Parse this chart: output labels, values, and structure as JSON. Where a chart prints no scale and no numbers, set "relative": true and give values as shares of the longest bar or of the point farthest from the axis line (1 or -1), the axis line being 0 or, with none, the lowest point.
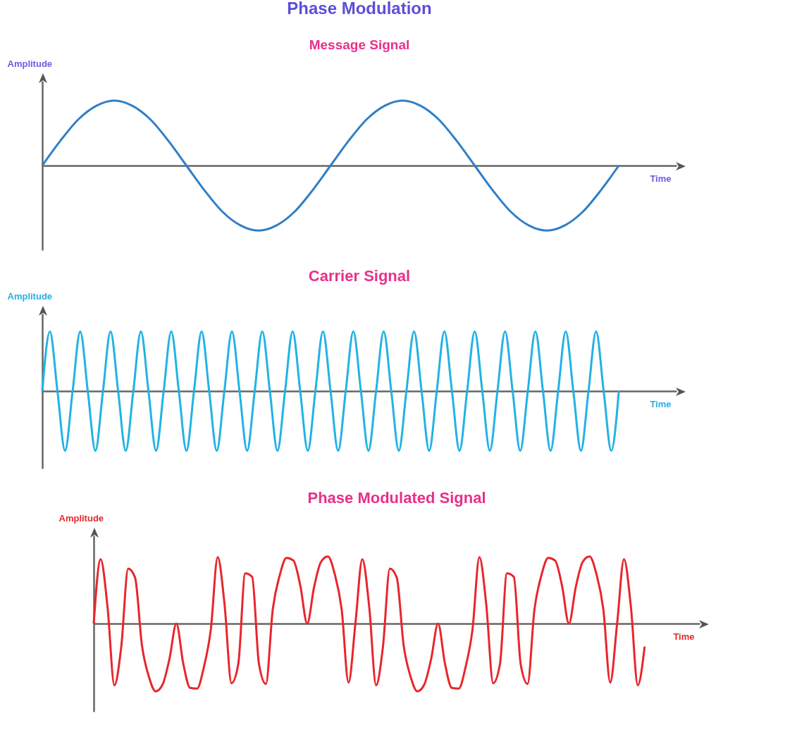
{
  "chart_data": [
    {
      "type": "line",
      "title": "Phase Modulation",
      "subtitle": "Message Signal",
      "xlabel": "Time",
      "ylabel": "Amplitude",
      "relative": true,
      "tick_labels": false,
      "categories": [
        null,
        null,
        null,
        null,
        null,
        null,
        null,
        null,
        null,
        null,
        null,
        null,
        null,
        null,
        null,
        null,
        null,
        null,
        null,
        null,
        null,
        null,
        null,
        null,
        null,
        null,
        null,
        null,
        null,
        null,
        null,
        null,
        null
      ],
      "series": [
        {
          "color": "#2f7fc6",
          "values": [
            0,
            0.38,
            0.71,
            0.92,
            1,
            0.92,
            0.71,
            0.38,
            0,
            -0.38,
            -0.71,
            -0.92,
            -1,
            -0.92,
            -0.71,
            -0.38,
            0,
            0.38,
            0.71,
            0.92,
            1,
            0.92,
            0.71,
            0.38,
            0,
            -0.38,
            -0.71,
            -0.92,
            -1,
            -0.92,
            -0.71,
            -0.38,
            0
          ]
        }
      ]
    },
    {
      "type": "line",
      "title": "Carrier Signal",
      "xlabel": "Time",
      "ylabel": "Amplitude",
      "relative": true,
      "tick_labels": false,
      "categories": [
        null,
        null,
        null,
        null,
        null,
        null,
        null,
        null,
        null,
        null,
        null,
        null,
        null,
        null,
        null,
        null,
        null,
        null,
        null,
        null,
        null,
        null,
        null,
        null,
        null,
        null,
        null,
        null,
        null,
        null,
        null,
        null,
        null,
        null,
        null,
        null,
        null,
        null,
        null,
        null,
        null,
        null,
        null,
        null,
        null,
        null,
        null,
        null,
        null,
        null,
        null,
        null,
        null,
        null,
        null,
        null,
        null,
        null,
        null,
        null,
        null,
        null,
        null,
        null,
        null,
        null,
        null,
        null,
        null,
        null,
        null,
        null,
        null,
        null,
        null,
        null,
        null
      ],
      "series": [
        {
          "color": "#22b2e4",
          "values": [
            0,
            1,
            0,
            -1,
            0,
            1,
            0,
            -1,
            0,
            1,
            0,
            -1,
            0,
            1,
            0,
            -1,
            0,
            1,
            0,
            -1,
            0,
            1,
            0,
            -1,
            0,
            1,
            0,
            -1,
            0,
            1,
            0,
            -1,
            0,
            1,
            0,
            -1,
            0,
            1,
            0,
            -1,
            0,
            1,
            0,
            -1,
            0,
            1,
            0,
            -1,
            0,
            1,
            0,
            -1,
            0,
            1,
            0,
            -1,
            0,
            1,
            0,
            -1,
            0,
            1,
            0,
            -1,
            0,
            1,
            0,
            -1,
            0,
            1,
            0,
            -1,
            0,
            1,
            0,
            -1,
            0
          ]
        }
      ]
    },
    {
      "type": "line",
      "title": "Phase Modulated Signal",
      "xlabel": "Time",
      "ylabel": "Amplitude",
      "relative": true,
      "tick_labels": false,
      "categories": [
        null,
        null,
        null,
        null,
        null,
        null,
        null,
        null,
        null,
        null,
        null,
        null,
        null,
        null,
        null,
        null,
        null,
        null,
        null,
        null,
        null,
        null,
        null,
        null,
        null,
        null,
        null,
        null,
        null,
        null,
        null,
        null,
        null,
        null,
        null,
        null,
        null,
        null,
        null,
        null,
        null,
        null,
        null,
        null,
        null,
        null,
        null,
        null,
        null,
        null,
        null,
        null,
        null,
        null,
        null,
        null,
        null,
        null,
        null,
        null,
        null,
        null,
        null,
        null,
        null,
        null,
        null,
        null,
        null,
        null,
        null,
        null,
        null,
        null,
        null,
        null,
        null,
        null,
        null,
        null,
        null
      ],
      "series": [
        {
          "color": "#e8262c",
          "values": [
            0,
            0.95,
            0.25,
            -0.91,
            -0.34,
            0.81,
            0.68,
            -0.32,
            -0.78,
            -1,
            -0.9,
            -0.52,
            0,
            -0.59,
            -0.95,
            -0.96,
            -0.64,
            -0.09,
            0.98,
            0.28,
            -0.88,
            -0.59,
            0.74,
            0.69,
            -0.6,
            -0.89,
            0.21,
            0.71,
            0.97,
            0.93,
            0.56,
            0,
            0.54,
            0.91,
            0.99,
            0.73,
            0.21,
            -0.87,
            0,
            0.95,
            0.25,
            -0.91,
            -0.34,
            0.81,
            0.68,
            -0.32,
            -0.78,
            -1,
            -0.9,
            -0.52,
            0,
            -0.59,
            -0.95,
            -0.96,
            -0.64,
            -0.09,
            0.98,
            0.28,
            -0.88,
            -0.59,
            0.74,
            0.69,
            -0.6,
            -0.89,
            0.21,
            0.71,
            0.97,
            0.93,
            0.56,
            0,
            0.54,
            0.91,
            0.99,
            0.73,
            0.21,
            -0.87,
            0,
            0.95,
            0.25,
            -0.91,
            -0.34
          ]
        }
      ]
    }
  ]
}
